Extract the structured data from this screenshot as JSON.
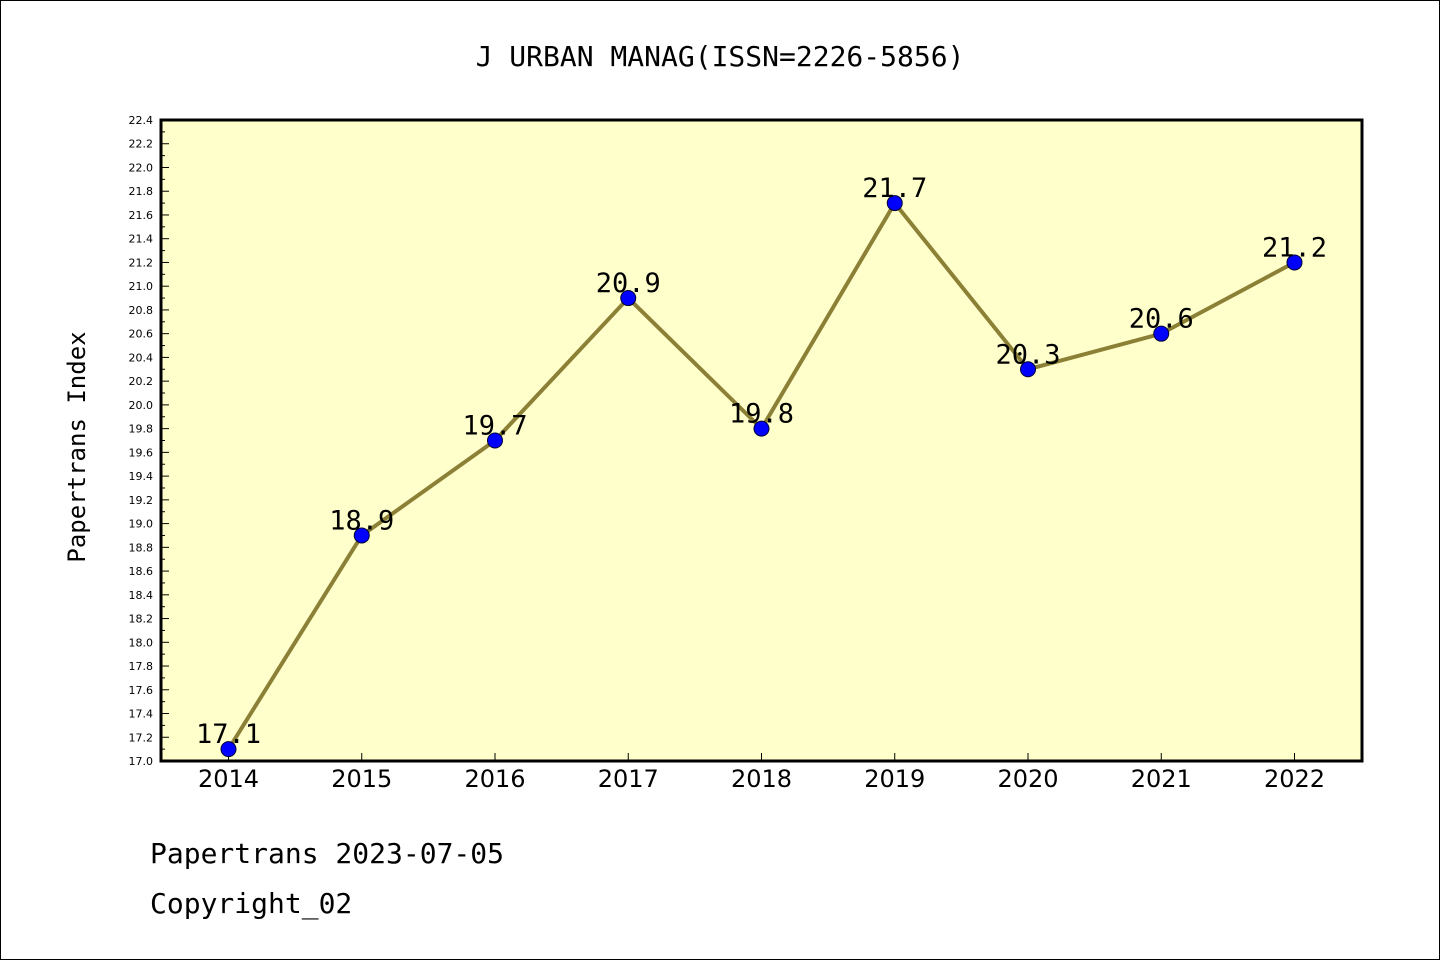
{
  "chart_data": {
    "type": "line",
    "title": "J URBAN MANAG(ISSN=2226-5856)",
    "ylabel": "Papertrans Index",
    "xlabel": "",
    "categories": [
      "2014",
      "2015",
      "2016",
      "2017",
      "2018",
      "2019",
      "2020",
      "2021",
      "2022"
    ],
    "series": [
      {
        "values": [
          17.1,
          18.9,
          19.7,
          20.9,
          19.8,
          21.7,
          20.3,
          20.6,
          21.2
        ]
      }
    ],
    "data_labels": [
      "17.1",
      "18.9",
      "19.7",
      "20.9",
      "19.8",
      "21.7",
      "20.3",
      "20.6",
      "21.2"
    ],
    "ylim": [
      17.0,
      22.4
    ],
    "y_major_step": 0.2,
    "yticks": [
      "17.0",
      "17.2",
      "17.4",
      "17.6",
      "17.8",
      "18.0",
      "18.2",
      "18.4",
      "18.6",
      "18.8",
      "19.0",
      "19.2",
      "19.4",
      "19.6",
      "19.8",
      "20.0",
      "20.2",
      "20.4",
      "20.6",
      "20.8",
      "21.0",
      "21.2",
      "21.4",
      "21.6",
      "21.8",
      "22.0",
      "22.2",
      "22.4"
    ],
    "grid": false,
    "legend": "none",
    "colors": {
      "plot_background": "#ffffcc",
      "line": "#8b8035",
      "marker": "#0000ff",
      "axis": "#000000"
    }
  },
  "footer": {
    "date_line": "Papertrans 2023-07-05",
    "copyright": "Copyright_02"
  }
}
